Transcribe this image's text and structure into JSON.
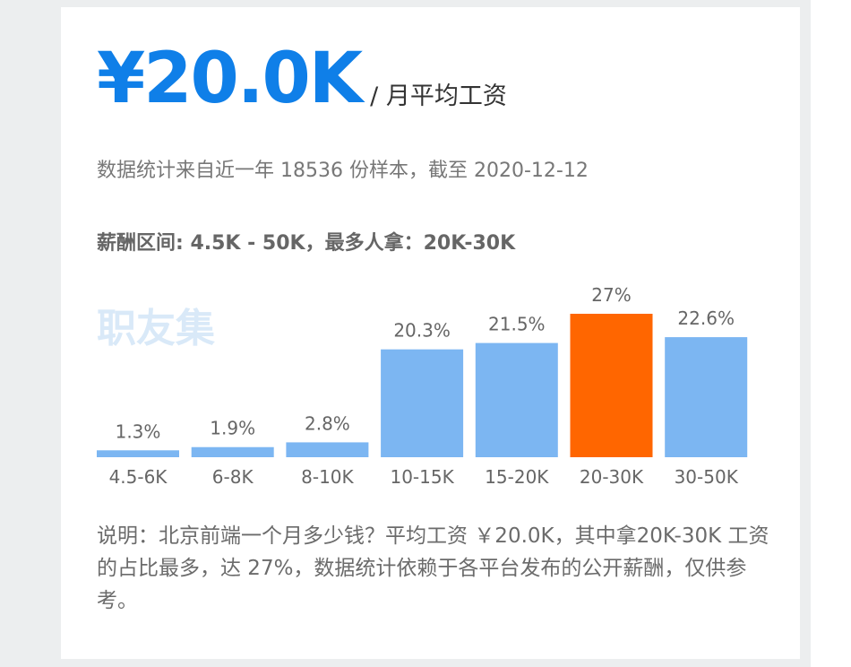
{
  "header": {
    "average_value": "¥20.0K",
    "average_unit": "/ 月平均工资",
    "subtitle": "数据统计来自近一年 18536 份样本，截至 2020-12-12",
    "range_text": "薪酬区间: 4.5K - 50K，最多人拿：20K-30K"
  },
  "watermark": "职友集",
  "note": "说明：北京前端一个月多少钱？平均工资 ￥20.0K，其中拿20K-30K 工资的占比最多，达 27%，数据统计依赖于各平台发布的公开薪酬，仅供参考。",
  "colors": {
    "accent": "#0f7fe8",
    "bar": "#7cb6f2",
    "highlight_bar": "#ff6600"
  },
  "chart_data": {
    "type": "bar",
    "categories": [
      "4.5-6K",
      "6-8K",
      "8-10K",
      "10-15K",
      "15-20K",
      "20-30K",
      "30-50K"
    ],
    "values": [
      1.3,
      1.9,
      2.8,
      20.3,
      21.5,
      27,
      22.6
    ],
    "value_labels": [
      "1.3%",
      "1.9%",
      "2.8%",
      "20.3%",
      "21.5%",
      "27%",
      "22.6%"
    ],
    "highlight_index": 5,
    "ylim": [
      0,
      27
    ],
    "title": "",
    "xlabel": "",
    "ylabel": "",
    "grid": false
  }
}
